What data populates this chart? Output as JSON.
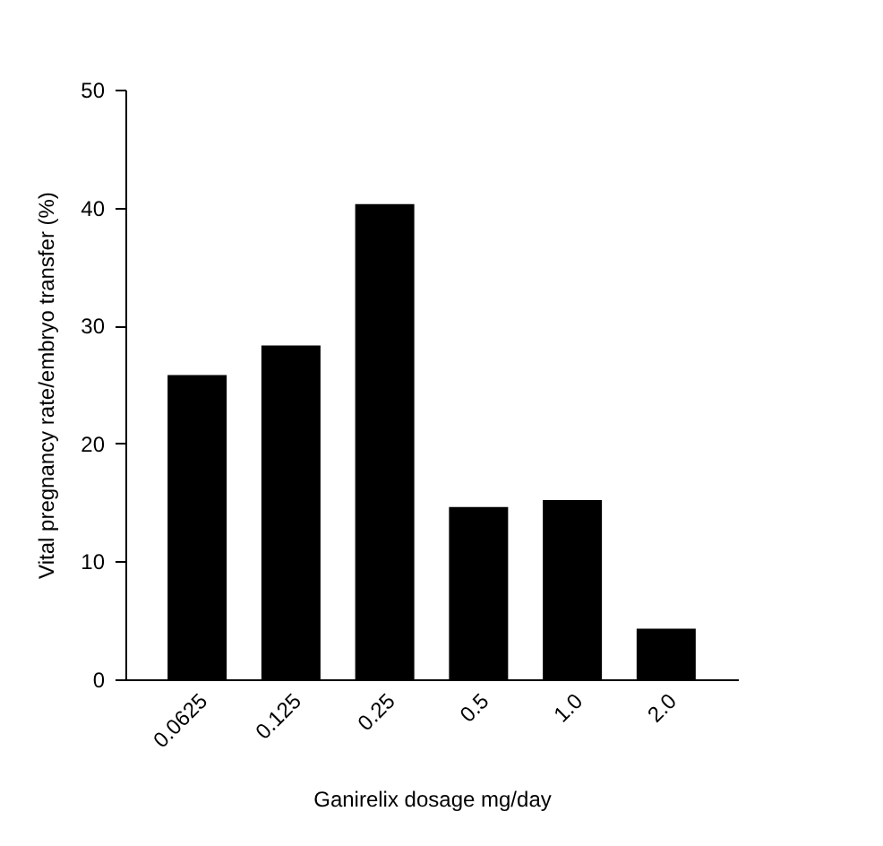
{
  "chart_data": {
    "type": "bar",
    "xlabel": "Ganirelix dosage mg/day",
    "ylabel": "Vital pregnancy rate/embryo transfer (%)",
    "categories": [
      "0.0625",
      "0.125",
      "0.25",
      "0.5",
      "1.0",
      "2.0"
    ],
    "values": [
      25.8,
      28.3,
      40.3,
      14.6,
      15.2,
      4.3
    ],
    "color": "#000000",
    "ylim": [
      0,
      50
    ],
    "yticks": [
      0,
      10,
      20,
      30,
      40,
      50
    ],
    "grid": false
  }
}
